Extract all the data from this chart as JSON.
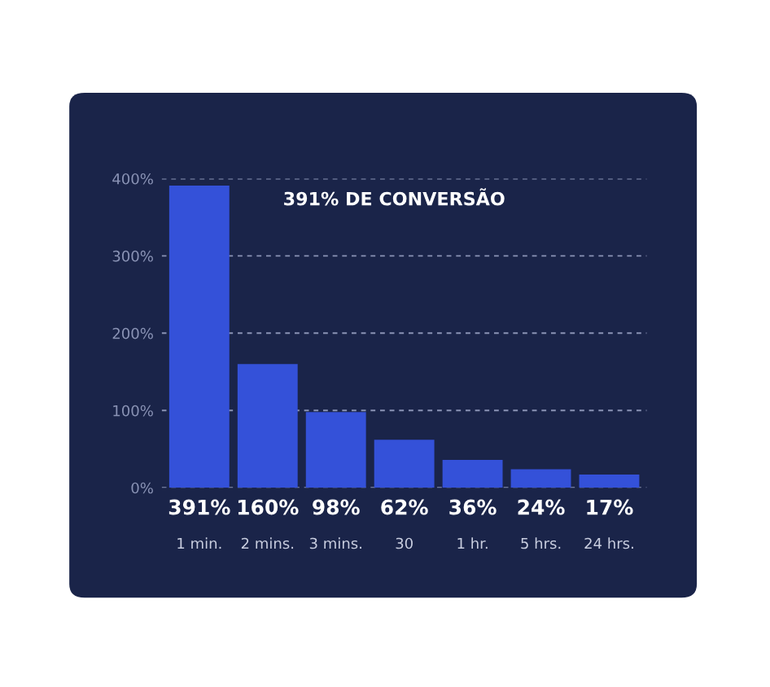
{
  "chart_data": {
    "type": "bar",
    "categories": [
      "1 min.",
      "2 mins.",
      "3 mins.",
      "30",
      "1 hr.",
      "5 hrs.",
      "24 hrs."
    ],
    "values": [
      391,
      160,
      98,
      62,
      36,
      24,
      17
    ],
    "value_labels": [
      "391%",
      "160%",
      "98%",
      "62%",
      "36%",
      "24%",
      "17%"
    ],
    "color": "#3451d9",
    "ylim": [
      0,
      400
    ],
    "yticks": [
      {
        "value": 0,
        "label": "0%"
      },
      {
        "value": 100,
        "label": "100%"
      },
      {
        "value": 200,
        "label": "200%"
      },
      {
        "value": 300,
        "label": "300%"
      },
      {
        "value": 400,
        "label": "400%"
      }
    ],
    "grid": "y",
    "annotations": [
      "391% DE CONVERSÃO"
    ]
  }
}
